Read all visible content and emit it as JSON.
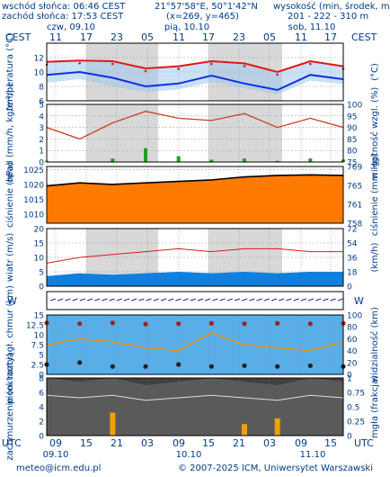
{
  "header": {
    "sunrise": "wschód słońca: 06:46 CEST",
    "sunset": "zachód słońca: 17:53 CEST",
    "coords": "21°57'58\"E, 50°1'42\"N",
    "grid": "(x=269, y=465)",
    "elevation_label": "wysokość (min, środek, max)",
    "elevation_values": "201 - 222 - 310 m"
  },
  "timezones": {
    "left": "CEST",
    "right": "CEST",
    "bottom_left": "UTC",
    "bottom_right": "UTC"
  },
  "days_top": [
    {
      "label": "czw, 09.10",
      "x": 79
    },
    {
      "label": "pią, 10.10",
      "x": 208
    },
    {
      "label": "sob, 11.10",
      "x": 347
    }
  ],
  "hours_top": [
    "11",
    "17",
    "23",
    "05",
    "11",
    "17",
    "23",
    "05",
    "11",
    "17"
  ],
  "hours_bottom": [
    "09",
    "15",
    "21",
    "03",
    "09",
    "15",
    "21",
    "03",
    "09",
    "15"
  ],
  "days_bottom": [
    {
      "label": "09.10",
      "x": 62
    },
    {
      "label": "10.10",
      "x": 210
    },
    {
      "label": "11.10",
      "x": 348
    }
  ],
  "footer": {
    "email": "meteo@icm.edu.pl",
    "copyright": "© 2007-2025 ICM, Uniwersytet Warszawski"
  },
  "colors": {
    "temp_max": "#e01818",
    "temp_mean": "#1030e0",
    "band": "#9ec8ee",
    "precip": "#20a020",
    "humidity": "#c84020",
    "pressure_line": "#000000",
    "pressure_fill": "#ff7a00",
    "wind_fill": "#1080e0",
    "wind_gust": "#e01818",
    "cloud_bars": "#f0a000",
    "dark_panel": "#404040"
  },
  "chart_data": [
    {
      "type": "line",
      "title": "temperatura",
      "ylabel": "temperatura (°C)",
      "ylabel_right": "(°C)",
      "ylim": [
        6,
        14
      ],
      "yticks": [
        6,
        8,
        10,
        12
      ],
      "x_hours": [
        0,
        6,
        12,
        18,
        24,
        30,
        36,
        42,
        48,
        54
      ],
      "series": [
        {
          "name": "max",
          "values": [
            11.4,
            11.6,
            11.5,
            10.5,
            10.8,
            11.5,
            11.2,
            10.0,
            11.5,
            10.8
          ]
        },
        {
          "name": "mean",
          "values": [
            9.6,
            10.0,
            9.2,
            8.0,
            8.4,
            9.5,
            8.4,
            7.5,
            9.6,
            9.0
          ]
        },
        {
          "name": "min",
          "values": [
            8.5,
            9.0,
            8.0,
            7.2,
            7.6,
            8.6,
            7.7,
            6.9,
            8.8,
            8.3
          ]
        }
      ]
    },
    {
      "type": "bar",
      "title": "opad",
      "ylabel": "opad (mm/h, kg/m²/h)",
      "ylabel_right": "wilgotność wzgl. (%)",
      "ylim": [
        0,
        5
      ],
      "yticks": [
        0,
        1,
        2,
        3,
        4,
        5
      ],
      "y2lim": [
        75,
        100
      ],
      "y2ticks": [
        75,
        80,
        85,
        90,
        95,
        100
      ],
      "series": [
        {
          "name": "precip",
          "values": [
            0.1,
            0.0,
            0.3,
            1.2,
            0.5,
            0.2,
            0.3,
            0.1,
            0.3,
            0.2
          ]
        },
        {
          "name": "humidity",
          "values": [
            90,
            85,
            92,
            97,
            94,
            93,
            96,
            90,
            94,
            90
          ]
        }
      ]
    },
    {
      "type": "area",
      "title": "ciśnienie",
      "ylabel": "ciśnienie (hPa)",
      "ylabel_right": "ciśnienie (mm Hg)",
      "ylim": [
        1007,
        1026
      ],
      "yticks": [
        1010,
        1015,
        1020,
        1025
      ],
      "y2ticks": [
        758,
        761,
        765,
        769
      ],
      "series": [
        {
          "name": "pressure",
          "values": [
            1019.5,
            1020.5,
            1020.0,
            1020.5,
            1021.0,
            1021.5,
            1022.5,
            1023.0,
            1023.2,
            1023.0
          ]
        }
      ]
    },
    {
      "type": "area",
      "title": "wiatr",
      "ylabel": "wiatr (m/s)",
      "ylabel_right": "(km/h)",
      "ylim": [
        0,
        20
      ],
      "yticks": [
        0,
        5,
        10,
        15,
        20
      ],
      "y2ticks": [
        0,
        18,
        36,
        54,
        72
      ],
      "series": [
        {
          "name": "wind",
          "values": [
            3.5,
            4.5,
            4.0,
            4.5,
            5.0,
            4.5,
            5.0,
            4.5,
            5.0,
            5.0
          ]
        },
        {
          "name": "gusts",
          "values": [
            8,
            10,
            11,
            12,
            13,
            12,
            13,
            13,
            12,
            12
          ]
        }
      ]
    },
    {
      "type": "scatter",
      "title": "pion. rozciągł. chmur",
      "ylabel": "pion. rozciągł. chmur (km)",
      "ylabel_right": "widzialność (km)",
      "ylim": [
        0,
        15
      ],
      "yticks": [
        0,
        2.5,
        5,
        7.5,
        10,
        12.5,
        15
      ],
      "y2ticks": [
        0,
        20,
        40,
        60,
        80,
        100
      ],
      "series": [
        {
          "name": "high",
          "values": [
            13.0,
            12.8,
            13.0,
            12.7,
            12.8,
            12.9,
            12.8,
            12.9,
            12.8,
            12.9
          ]
        },
        {
          "name": "low",
          "values": [
            2.5,
            3.0,
            2.0,
            2.0,
            2.5,
            2.0,
            2.2,
            2.0,
            2.2,
            2.0
          ]
        },
        {
          "name": "visibility",
          "values": [
            50,
            60,
            55,
            45,
            40,
            70,
            50,
            45,
            40,
            55
          ]
        }
      ]
    },
    {
      "type": "area",
      "title": "zachmurzenie",
      "ylabel": "zachmurzenie (oktanty)",
      "ylabel_right": "mgła (frakcja)",
      "ylim": [
        0,
        8
      ],
      "yticks": [
        0,
        2,
        4,
        6,
        8
      ],
      "y2ticks": [
        0,
        0.25,
        0.5,
        0.75,
        1
      ],
      "series": [
        {
          "name": "cloud",
          "values": [
            8,
            7.5,
            8,
            7,
            7.5,
            8,
            7.5,
            7,
            8,
            7.5
          ]
        },
        {
          "name": "fog",
          "values": [
            0.0,
            0.0,
            0.4,
            0.0,
            0.0,
            0.0,
            0.2,
            0.3,
            0.0,
            0.0
          ]
        }
      ]
    }
  ]
}
